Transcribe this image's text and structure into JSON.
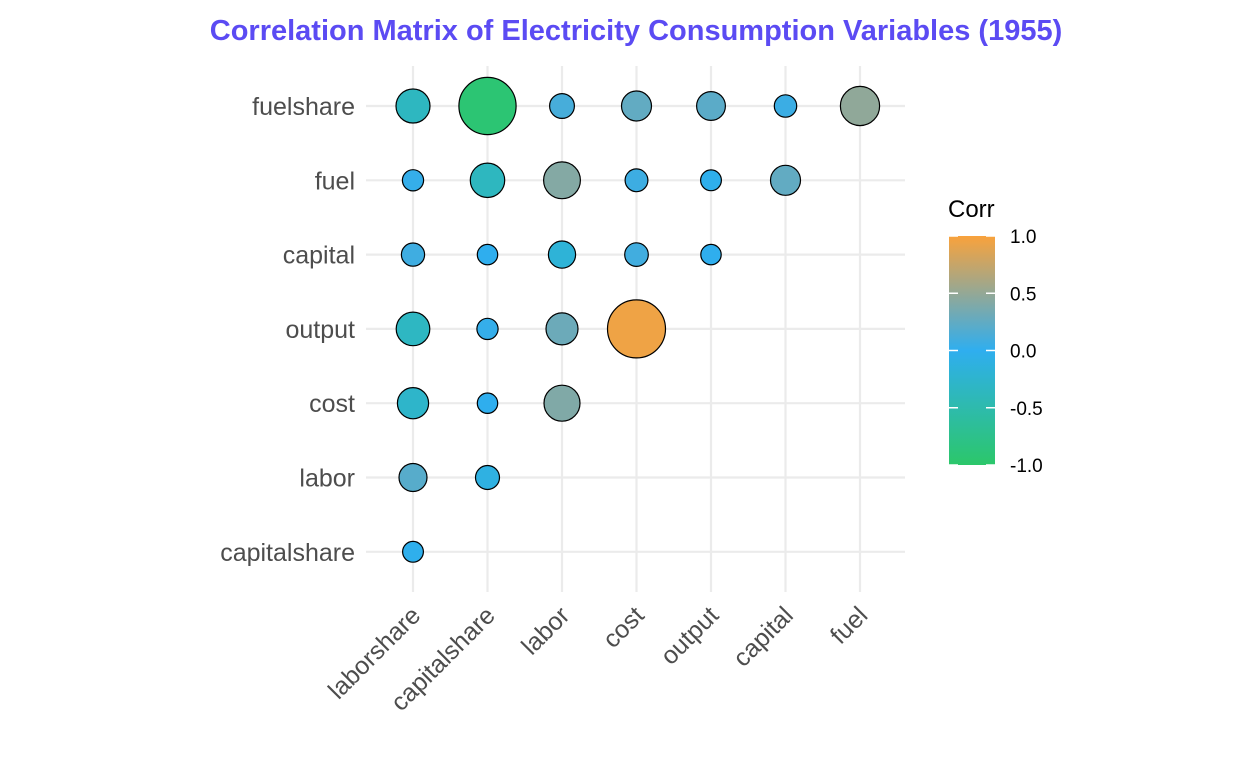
{
  "chart_data": {
    "type": "scatter",
    "title": "Correlation Matrix of Electricity Consumption Variables (1955)",
    "x_categories": [
      "laborshare",
      "capitalshare",
      "labor",
      "cost",
      "output",
      "capital",
      "fuel"
    ],
    "y_categories": [
      "fuelshare",
      "fuel",
      "capital",
      "output",
      "cost",
      "labor",
      "capitalshare"
    ],
    "points": [
      {
        "x": "laborshare",
        "y": "fuelshare",
        "corr": -0.35
      },
      {
        "x": "capitalshare",
        "y": "fuelshare",
        "corr": -0.93
      },
      {
        "x": "labor",
        "y": "fuelshare",
        "corr": 0.12
      },
      {
        "x": "cost",
        "y": "fuelshare",
        "corr": 0.25
      },
      {
        "x": "output",
        "y": "fuelshare",
        "corr": 0.22
      },
      {
        "x": "capital",
        "y": "fuelshare",
        "corr": 0.06
      },
      {
        "x": "fuel",
        "y": "fuelshare",
        "corr": 0.48
      },
      {
        "x": "laborshare",
        "y": "fuel",
        "corr": 0.03
      },
      {
        "x": "capitalshare",
        "y": "fuel",
        "corr": -0.36
      },
      {
        "x": "labor",
        "y": "fuel",
        "corr": 0.42
      },
      {
        "x": "cost",
        "y": "fuel",
        "corr": 0.07
      },
      {
        "x": "output",
        "y": "fuel",
        "corr": -0.02
      },
      {
        "x": "capital",
        "y": "fuel",
        "corr": 0.25
      },
      {
        "x": "laborshare",
        "y": "capital",
        "corr": 0.08
      },
      {
        "x": "capitalshare",
        "y": "capital",
        "corr": -0.01
      },
      {
        "x": "labor",
        "y": "capital",
        "corr": -0.18
      },
      {
        "x": "cost",
        "y": "capital",
        "corr": 0.09
      },
      {
        "x": "output",
        "y": "capital",
        "corr": -0.01
      },
      {
        "x": "laborshare",
        "y": "output",
        "corr": -0.34
      },
      {
        "x": "capitalshare",
        "y": "output",
        "corr": 0.03
      },
      {
        "x": "labor",
        "y": "output",
        "corr": 0.3
      },
      {
        "x": "cost",
        "y": "output",
        "corr": 0.95
      },
      {
        "x": "laborshare",
        "y": "cost",
        "corr": -0.28
      },
      {
        "x": "capitalshare",
        "y": "cost",
        "corr": -0.01
      },
      {
        "x": "labor",
        "y": "cost",
        "corr": 0.4
      },
      {
        "x": "laborshare",
        "y": "labor",
        "corr": 0.2
      },
      {
        "x": "capitalshare",
        "y": "labor",
        "corr": -0.1
      },
      {
        "x": "laborshare",
        "y": "capitalshare",
        "corr": -0.02
      }
    ],
    "legend": {
      "title": "Corr",
      "range": [
        -1.0,
        1.0
      ],
      "ticks": [
        "1.0",
        "0.5",
        "0.0",
        "-0.5",
        "-1.0"
      ],
      "tick_values": [
        1.0,
        0.5,
        0.0,
        -0.5,
        -1.0
      ],
      "placement": "right"
    },
    "grid": true,
    "colors": {
      "low": "#2CC76A",
      "mid": "#2FAEEF",
      "high": "#F9A23C",
      "title": "#5B4BF3"
    }
  }
}
